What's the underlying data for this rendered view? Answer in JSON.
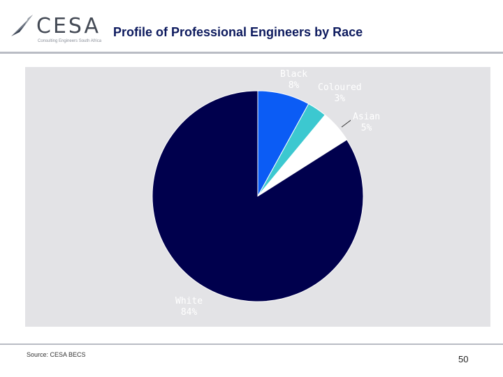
{
  "header": {
    "logo_text": "CESA",
    "logo_tagline": "Consulting Engineers South Africa",
    "title": "Profile of Professional  Engineers by Race"
  },
  "chart_data": {
    "type": "pie",
    "title": "Profile of Professional  Engineers by Race",
    "slices": [
      {
        "name": "Black",
        "value": 8,
        "label": "8%",
        "color": "#0b5cf5"
      },
      {
        "name": "Coloured",
        "value": 3,
        "label": "3%",
        "color": "#3cc8d0"
      },
      {
        "name": "Asian",
        "value": 5,
        "label": "5%",
        "color": "#ffffff"
      },
      {
        "name": "White",
        "value": 84,
        "label": "84%",
        "color": "#00004d"
      }
    ],
    "start_angle_deg": 0,
    "direction": "clockwise"
  },
  "footer": {
    "source": "Source: CESA BECS",
    "page_number": "50"
  }
}
